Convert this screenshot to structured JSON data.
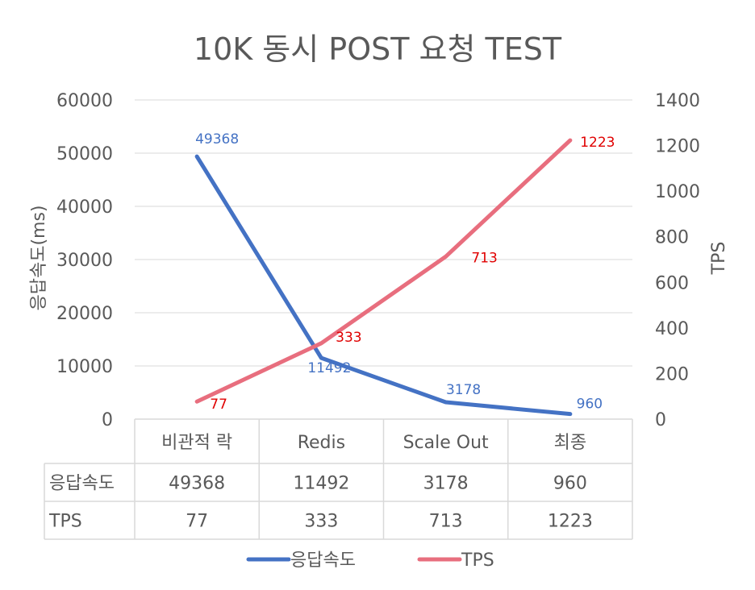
{
  "chart_data": {
    "type": "line",
    "title": "10K 동시 POST 요청 TEST",
    "categories": [
      "비관적 락",
      "Redis",
      "Scale Out",
      "최종"
    ],
    "y_left_label": "응답속도(ms)",
    "y_right_label": "TPS",
    "y_left_range": [
      0,
      60000
    ],
    "y_left_ticks": [
      "0",
      "10000",
      "20000",
      "30000",
      "40000",
      "50000",
      "60000"
    ],
    "y_right_range": [
      0,
      1400
    ],
    "y_right_ticks": [
      "0",
      "200",
      "400",
      "600",
      "800",
      "1000",
      "1200",
      "1400"
    ],
    "grid": true,
    "legend_position": "bottom",
    "series": [
      {
        "name": "응답속도",
        "axis": "left",
        "color": "#4472C4",
        "label_color": "#4472C4",
        "values": [
          49368,
          11492,
          3178,
          960
        ],
        "labels": [
          "49368",
          "11492",
          "3178",
          "960"
        ]
      },
      {
        "name": "TPS",
        "axis": "right",
        "color": "#E86E7E",
        "label_color": "#E00000",
        "values": [
          77,
          333,
          713,
          1223
        ],
        "labels": [
          "77",
          "333",
          "713",
          "1223"
        ]
      }
    ],
    "data_table": {
      "rows": [
        {
          "name": "응답속도",
          "cells": [
            "49368",
            "11492",
            "3178",
            "960"
          ]
        },
        {
          "name": "TPS",
          "cells": [
            "77",
            "333",
            "713",
            "1223"
          ]
        }
      ]
    }
  }
}
